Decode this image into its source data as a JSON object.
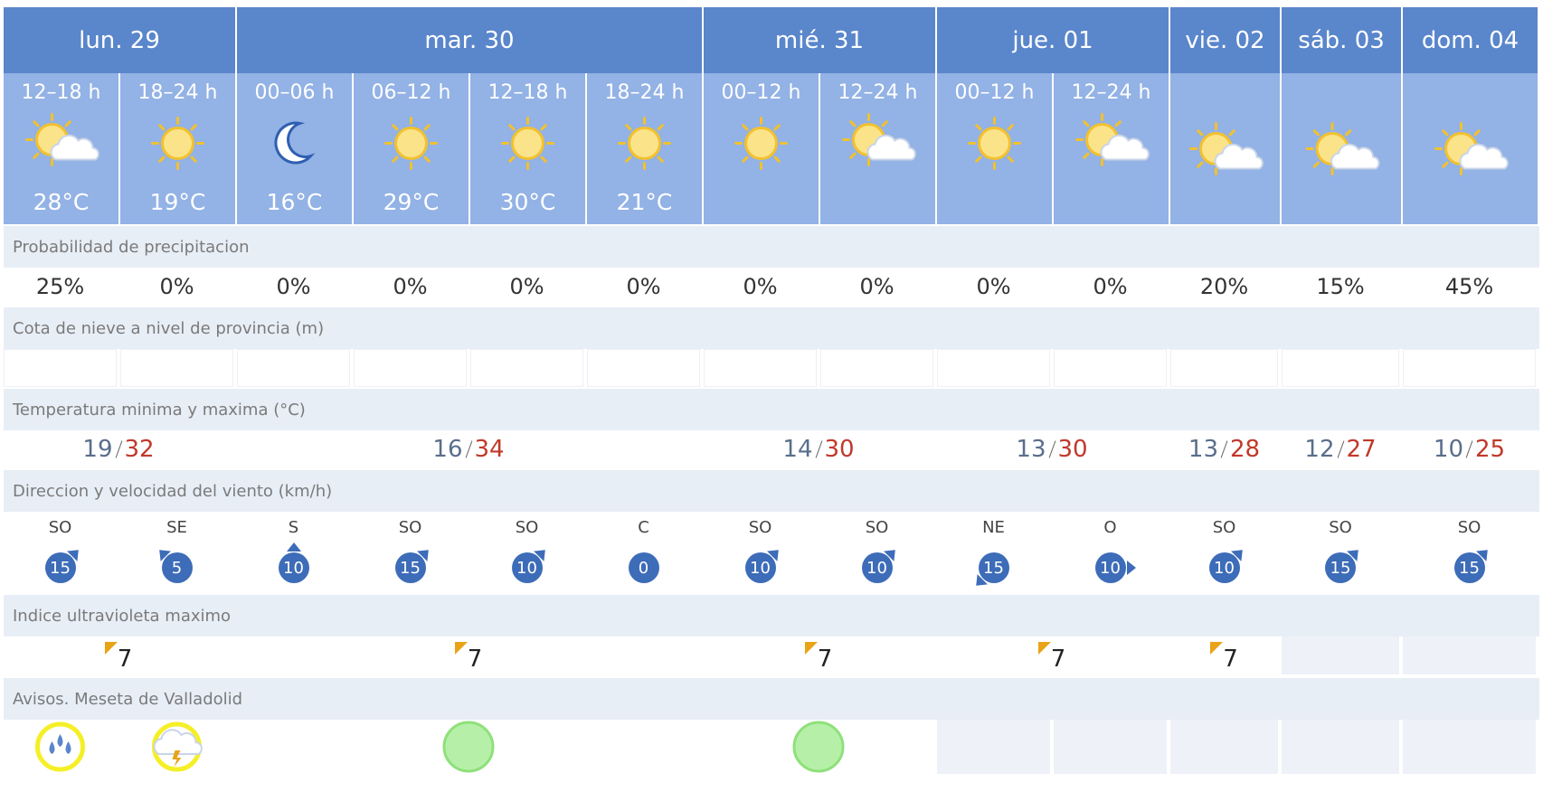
{
  "days": [
    {
      "name": "lun. 29",
      "periods": [
        {
          "time": "12–18 h",
          "temp": "28°C",
          "precip": "25%",
          "wind_dir": "SO",
          "wind_speed": 15
        },
        {
          "time": "18–24 h",
          "temp": "19°C",
          "precip": "0%",
          "wind_dir": "SE",
          "wind_speed": 5
        }
      ],
      "temp_min": 19,
      "temp_max": 32,
      "uv": 7
    },
    {
      "name": "mar. 30",
      "periods": [
        {
          "time": "00–06 h",
          "temp": "16°C",
          "precip": "0%",
          "wind_dir": "S",
          "wind_speed": 10
        },
        {
          "time": "06–12 h",
          "temp": "29°C",
          "precip": "0%",
          "wind_dir": "SO",
          "wind_speed": 15
        },
        {
          "time": "12–18 h",
          "temp": "30°C",
          "precip": "0%",
          "wind_dir": "SO",
          "wind_speed": 10
        },
        {
          "time": "18–24 h",
          "temp": "21°C",
          "precip": "0%",
          "wind_dir": "C",
          "wind_speed": 0
        }
      ],
      "temp_min": 16,
      "temp_max": 34,
      "uv": 7
    },
    {
      "name": "mié. 31",
      "periods": [
        {
          "time": "00–12 h",
          "precip": "0%",
          "wind_dir": "SO",
          "wind_speed": 10
        },
        {
          "time": "12–24 h",
          "precip": "0%",
          "wind_dir": "SO",
          "wind_speed": 10
        }
      ],
      "temp_min": 14,
      "temp_max": 30,
      "uv": 7
    },
    {
      "name": "jue. 01",
      "periods": [
        {
          "time": "00–12 h",
          "precip": "0%",
          "wind_dir": "NE",
          "wind_speed": 15
        },
        {
          "time": "12–24 h",
          "precip": "0%",
          "wind_dir": "O",
          "wind_speed": 10
        }
      ],
      "temp_min": 13,
      "temp_max": 30,
      "uv": 7
    },
    {
      "name": "vie. 02",
      "periods": [
        {
          "precip": "20%",
          "wind_dir": "SO",
          "wind_speed": 10
        }
      ],
      "temp_min": 13,
      "temp_max": 28,
      "uv": 7
    },
    {
      "name": "sáb. 03",
      "periods": [
        {
          "precip": "15%",
          "wind_dir": "SO",
          "wind_speed": 15
        }
      ],
      "temp_min": 12,
      "temp_max": 27
    },
    {
      "name": "dom. 04",
      "periods": [
        {
          "precip": "45%",
          "wind_dir": "SO",
          "wind_speed": 15
        }
      ],
      "temp_min": 10,
      "temp_max": 25
    }
  ],
  "labels": {
    "precipitation": "Probabilidad de precipitacion",
    "snow": "Cota de nieve a nivel de provincia (m)",
    "temperature": "Temperatura minima y maxima (°C)",
    "wind": "Direccion y velocidad del viento (km/h)",
    "uv": "Indice ultravioleta maximo",
    "warnings": "Avisos. Meseta de Valladolid"
  }
}
